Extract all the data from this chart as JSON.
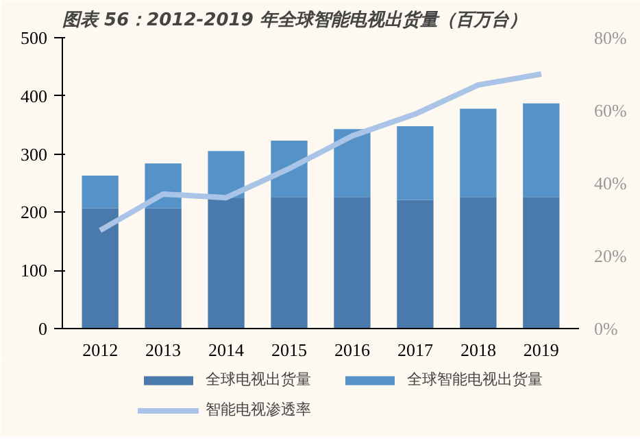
{
  "chart_data": {
    "type": "bar",
    "title": "图表 56：2012-2019 年全球智能电视出货量（百万台）",
    "stacked": true,
    "categories": [
      "2012",
      "2013",
      "2014",
      "2015",
      "2016",
      "2017",
      "2018",
      "2019"
    ],
    "series": [
      {
        "name": "全球电视出货量",
        "color": "#4a7aab",
        "values": [
          207,
          207,
          224,
          226,
          226,
          221,
          226,
          226
        ]
      },
      {
        "name": "全球智能电视出货量",
        "color": "#5592c8",
        "values": [
          56,
          77,
          81,
          97,
          117,
          127,
          152,
          161
        ]
      },
      {
        "name": "智能电视渗透率",
        "type": "line",
        "axis": "y2",
        "color": "#a9c4e6",
        "values": [
          27,
          37,
          36,
          44,
          53,
          59,
          67,
          70
        ]
      }
    ],
    "ylim": [
      0,
      500
    ],
    "yticks": [
      0,
      100,
      200,
      300,
      400,
      500
    ],
    "y2lim": [
      0,
      80
    ],
    "y2ticks": [
      {
        "value": 0,
        "label": "0%"
      },
      {
        "value": 20,
        "label": "20%"
      },
      {
        "value": 40,
        "label": "40%"
      },
      {
        "value": 60,
        "label": "60%"
      },
      {
        "value": 80,
        "label": "80%"
      }
    ],
    "grid": false,
    "legend": "bottom"
  }
}
